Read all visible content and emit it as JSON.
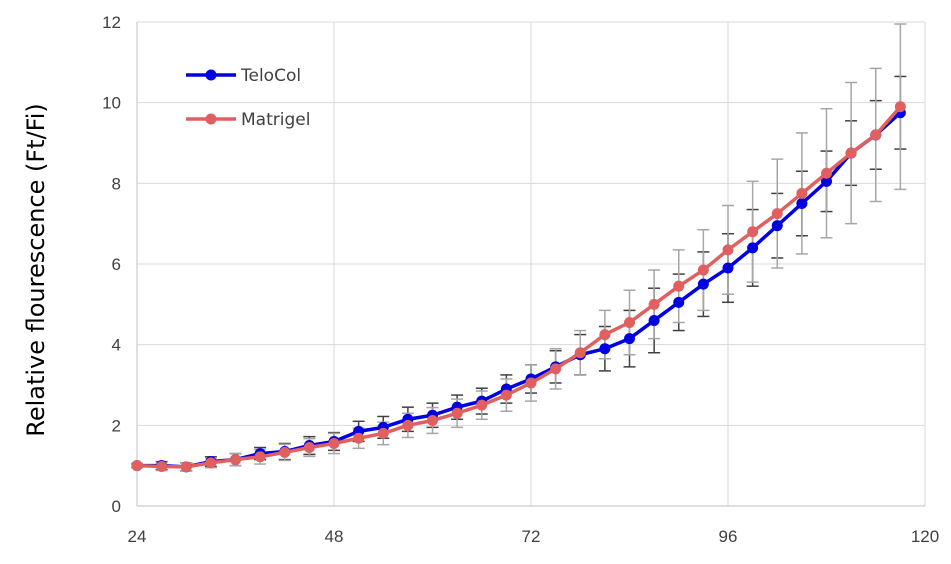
{
  "chart_data": {
    "type": "line",
    "title": "",
    "xlabel": "",
    "ylabel": "Relative flourescence (Ft/Fi)",
    "xlim": [
      24,
      120
    ],
    "ylim": [
      0,
      12
    ],
    "xticks": [
      24,
      48,
      72,
      96,
      120
    ],
    "yticks": [
      0,
      2,
      4,
      6,
      8,
      10,
      12
    ],
    "grid": true,
    "legend_position": "top-left",
    "x": [
      24,
      27,
      30,
      33,
      36,
      39,
      42,
      45,
      48,
      51,
      54,
      57,
      60,
      63,
      66,
      69,
      72,
      75,
      78,
      81,
      84,
      87,
      90,
      93,
      96,
      99,
      102,
      105,
      108,
      111,
      114,
      117
    ],
    "series": [
      {
        "name": "TeloCol",
        "color": "#0000e0",
        "values": [
          1.0,
          1.0,
          0.97,
          1.1,
          1.15,
          1.3,
          1.35,
          1.5,
          1.6,
          1.85,
          1.95,
          2.15,
          2.25,
          2.45,
          2.6,
          2.9,
          3.15,
          3.45,
          3.75,
          3.9,
          4.15,
          4.6,
          5.05,
          5.5,
          5.9,
          6.4,
          6.95,
          7.5,
          8.05,
          8.75,
          9.2,
          9.75
        ],
        "errors": [
          0.05,
          0.1,
          0.1,
          0.12,
          0.15,
          0.15,
          0.2,
          0.22,
          0.22,
          0.25,
          0.27,
          0.3,
          0.3,
          0.3,
          0.32,
          0.35,
          0.35,
          0.4,
          0.5,
          0.55,
          0.7,
          0.8,
          0.7,
          0.8,
          0.85,
          0.95,
          0.8,
          0.8,
          0.75,
          0.8,
          0.85,
          0.9
        ]
      },
      {
        "name": "Matrigel",
        "color": "#e06060",
        "values": [
          1.0,
          0.98,
          0.97,
          1.07,
          1.15,
          1.22,
          1.33,
          1.45,
          1.55,
          1.68,
          1.8,
          2.0,
          2.12,
          2.3,
          2.5,
          2.75,
          3.05,
          3.4,
          3.8,
          4.25,
          4.55,
          5.0,
          5.45,
          5.85,
          6.35,
          6.8,
          7.25,
          7.75,
          8.25,
          8.75,
          9.2,
          9.9
        ],
        "errors": [
          0.05,
          0.1,
          0.1,
          0.12,
          0.15,
          0.18,
          0.2,
          0.22,
          0.25,
          0.25,
          0.28,
          0.3,
          0.32,
          0.35,
          0.35,
          0.4,
          0.45,
          0.5,
          0.55,
          0.6,
          0.8,
          0.85,
          0.9,
          1.0,
          1.1,
          1.25,
          1.35,
          1.5,
          1.6,
          1.75,
          1.65,
          2.05
        ]
      }
    ]
  }
}
